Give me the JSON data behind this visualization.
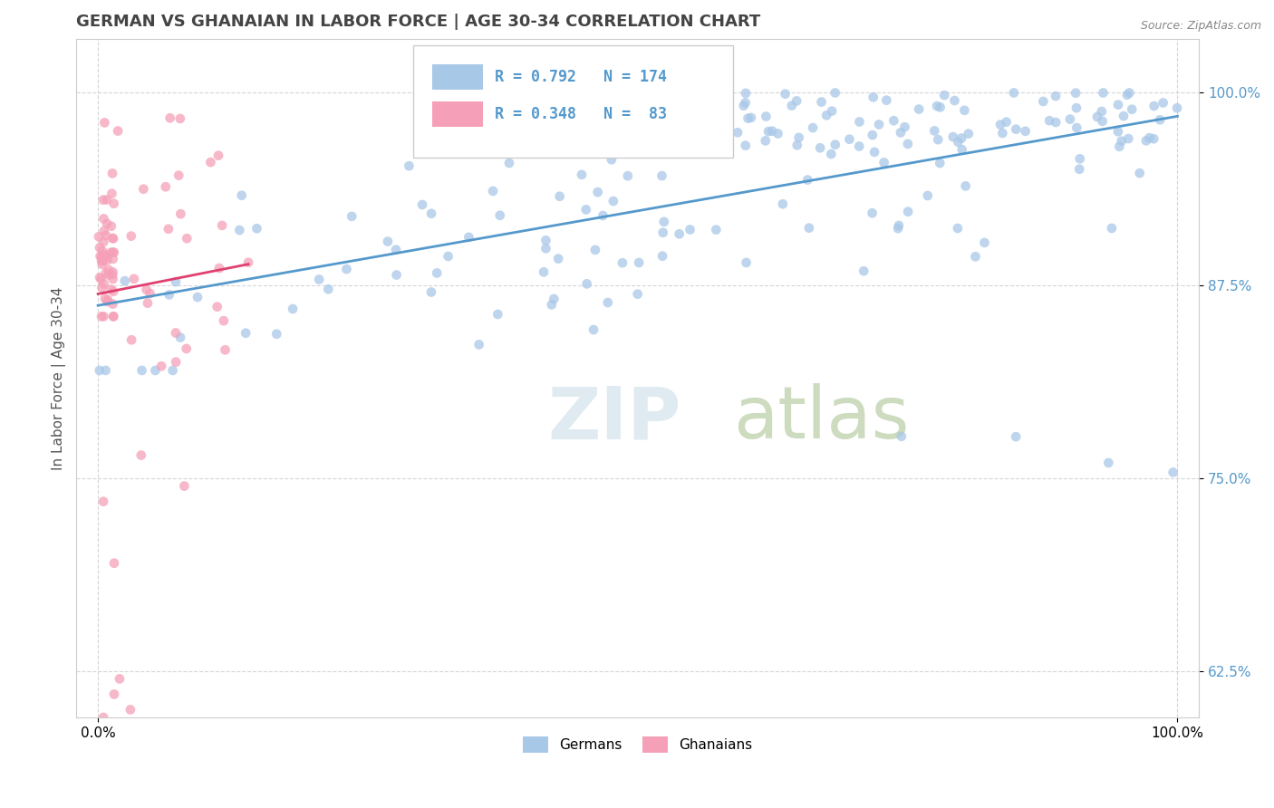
{
  "title": "GERMAN VS GHANAIAN IN LABOR FORCE | AGE 30-34 CORRELATION CHART",
  "source": "Source: ZipAtlas.com",
  "ylabel": "In Labor Force | Age 30-34",
  "xlim": [
    -0.02,
    1.02
  ],
  "ylim": [
    0.595,
    1.035
  ],
  "yticks": [
    0.625,
    0.75,
    0.875,
    1.0
  ],
  "ytick_labels": [
    "62.5%",
    "75.0%",
    "87.5%",
    "100.0%"
  ],
  "xticks": [
    0.0,
    1.0
  ],
  "xtick_labels": [
    "0.0%",
    "100.0%"
  ],
  "legend_r_german": "R = 0.792",
  "legend_n_german": "N = 174",
  "legend_r_ghanaian": "R = 0.348",
  "legend_n_ghanaian": "N =  83",
  "german_color": "#a8c8e8",
  "ghanaian_color": "#f5a0b8",
  "german_line_color": "#5599cc",
  "ghanaian_line_color": "#e04070",
  "title_fontsize": 13,
  "axis_label_fontsize": 11,
  "tick_fontsize": 11,
  "legend_fontsize": 12
}
